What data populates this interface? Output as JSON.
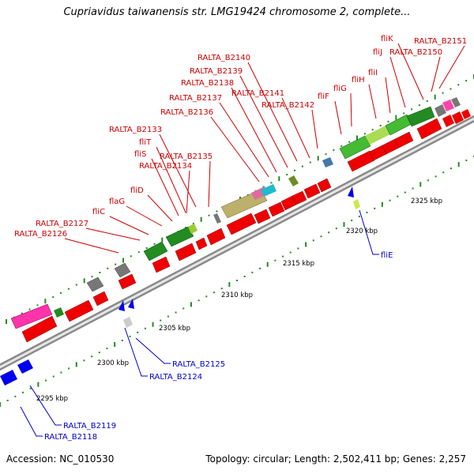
{
  "title": "Cupriavidus taiwanensis str. LMG19424 chromosome 2, complete...",
  "accession_text": "Accession: NC_010530",
  "summary_text": "Topology: circular; Length: 2,502,411 bp; Genes: 2,257",
  "colors": {
    "forward_label": "#cc0000",
    "reverse_label": "#0000cc",
    "cds": "#ff0000",
    "reverse_cds": "#0000ee",
    "tick": "#228b22",
    "backbone": "#999999"
  },
  "ticks": [
    "2295 kbp",
    "2300 kbp",
    "2305 kbp",
    "2310 kbp",
    "2315 kbp",
    "2320 kbp",
    "2325 kbp"
  ],
  "forward_labels": [
    "RALTA_B2126",
    "RALTA_B2127",
    "fliC",
    "flaG",
    "fliD",
    "RALTA_B2134",
    "fliS",
    "fliT",
    "RALTA_B2133",
    "RALTA_B2135",
    "RALTA_B2136",
    "RALTA_B2137",
    "RALTA_B2138",
    "RALTA_B2139",
    "RALTA_B2140",
    "RALTA_B2141",
    "RALTA_B2142",
    "fliF",
    "fliG",
    "fliH",
    "fliI",
    "fliJ",
    "fliK",
    "RALTA_B2150",
    "RALTA_B2151"
  ],
  "reverse_labels": [
    "RALTA_B2118",
    "RALTA_B2119",
    "RALTA_B2124",
    "RALTA_B2125",
    "fliE"
  ]
}
